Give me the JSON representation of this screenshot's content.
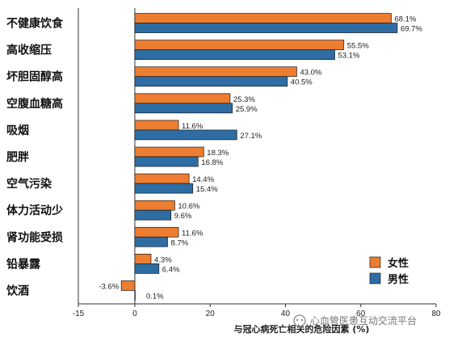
{
  "chart_data": {
    "type": "bar",
    "orientation": "horizontal",
    "categories": [
      "不健康饮食",
      "高收缩压",
      "坏胆固醇高",
      "空腹血糖高",
      "吸烟",
      "肥胖",
      "空气污染",
      "体力活动少",
      "肾功能受损",
      "铅暴露",
      "饮酒"
    ],
    "series": [
      {
        "name": "女性",
        "color": "#ED7D31",
        "values": [
          68.1,
          55.5,
          43.0,
          25.3,
          11.6,
          18.3,
          14.4,
          10.6,
          11.6,
          4.3,
          -3.6
        ],
        "labels": [
          "68.1%",
          "55.5%",
          "43.0%",
          "25.3%",
          "11.6%",
          "18.3%",
          "14.4%",
          "10.6%",
          "11.6%",
          "4.3%",
          "-3.6%"
        ]
      },
      {
        "name": "男性",
        "color": "#2E6DA4",
        "values": [
          69.7,
          53.1,
          40.5,
          25.9,
          27.1,
          16.8,
          15.4,
          9.6,
          8.7,
          6.4,
          0.1
        ],
        "labels": [
          "69.7%",
          "53.1%",
          "40.5%",
          "25.9%",
          "27.1%",
          "16.8%",
          "15.4%",
          "9.6%",
          "8.7%",
          "6.4%",
          "0.1%"
        ]
      }
    ],
    "xlabel": "与冠心病死亡相关的危险因素 (%)",
    "xlim": [
      -15,
      80
    ],
    "xticks": [
      -15,
      0,
      20,
      40,
      60,
      80
    ],
    "xtick_labels": [
      "-15",
      "0",
      "20",
      "40",
      "60",
      "80"
    ],
    "grid": false,
    "legend_position": "bottom-right"
  },
  "watermark": {
    "text": "心血管医患互动交流平台"
  }
}
